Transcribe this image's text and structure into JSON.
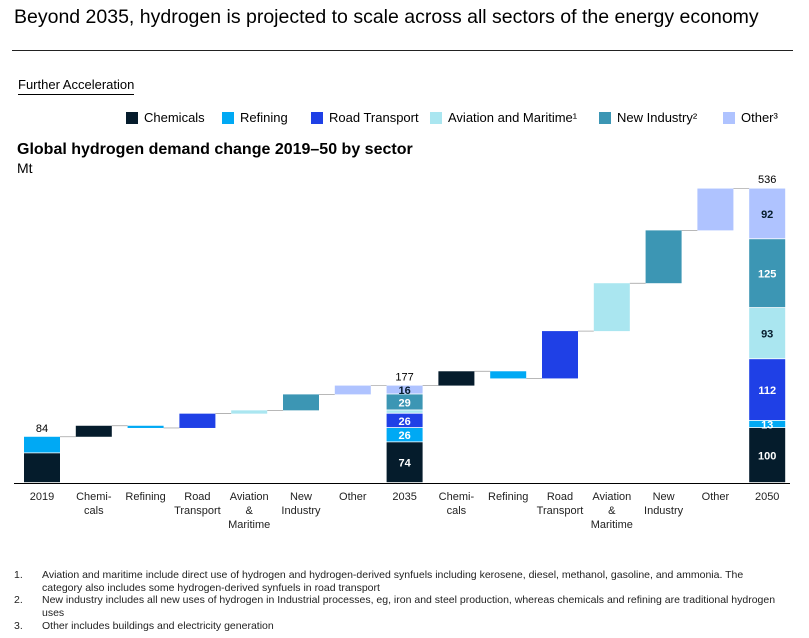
{
  "headline": "Beyond 2035, hydrogen is projected to scale across all sectors of the energy economy",
  "scenario_label": "Further Acceleration",
  "legend": [
    {
      "label": "Chemicals",
      "color": "#051c2c"
    },
    {
      "label": "Refining",
      "color": "#00a9f4"
    },
    {
      "label": "Road Transport",
      "color": "#1f40e6"
    },
    {
      "label": "Aviation and Maritime¹",
      "color": "#aae6f0"
    },
    {
      "label": "New Industry²",
      "color": "#3c96b4"
    },
    {
      "label": "Other³",
      "color": "#afc3ff"
    }
  ],
  "chart_data": {
    "type": "bar",
    "subtype": "waterfall",
    "title": "Global hydrogen demand change 2019–50 by sector",
    "ylabel": "Mt",
    "xlabel": "",
    "ylim": [
      0,
      536
    ],
    "grid": false,
    "legend_position": "top",
    "categories": [
      "2019",
      "Chemi-\ncals",
      "Refining",
      "Road\nTransport",
      "Aviation\n&\nMaritime",
      "New\nIndustry",
      "Other",
      "2035",
      "Chemi-\ncals",
      "Refining",
      "Road\nTransport",
      "Aviation\n&\nMaritime",
      "New\nIndustry",
      "Other",
      "2050"
    ],
    "sectors": [
      "Chemicals",
      "Refining",
      "Road Transport",
      "Aviation and Maritime",
      "New Industry",
      "Other"
    ],
    "totals": [
      {
        "category": "2019",
        "total": 84,
        "show_segment_labels": false,
        "segments": [
          {
            "sector": "Chemicals",
            "value": 54
          },
          {
            "sector": "Refining",
            "value": 30
          }
        ]
      },
      {
        "category": "2035",
        "total": 177,
        "show_segment_labels": true,
        "segments": [
          {
            "sector": "Chemicals",
            "value": 74
          },
          {
            "sector": "Refining",
            "value": 26
          },
          {
            "sector": "Road Transport",
            "value": 26
          },
          {
            "sector": "Aviation and Maritime",
            "value": 6
          },
          {
            "sector": "New Industry",
            "value": 29
          },
          {
            "sector": "Other",
            "value": 16
          }
        ]
      },
      {
        "category": "2050",
        "total": 536,
        "show_segment_labels": true,
        "segments": [
          {
            "sector": "Chemicals",
            "value": 100
          },
          {
            "sector": "Refining",
            "value": 13
          },
          {
            "sector": "Road Transport",
            "value": 112
          },
          {
            "sector": "Aviation and Maritime",
            "value": 93
          },
          {
            "sector": "New Industry",
            "value": 125
          },
          {
            "sector": "Other",
            "value": 92
          }
        ]
      }
    ],
    "changes": [
      {
        "category_index": 1,
        "sector": "Chemicals",
        "value": 20
      },
      {
        "category_index": 2,
        "sector": "Refining",
        "value": -4
      },
      {
        "category_index": 3,
        "sector": "Road Transport",
        "value": 26
      },
      {
        "category_index": 4,
        "sector": "Aviation and Maritime",
        "value": 6
      },
      {
        "category_index": 5,
        "sector": "New Industry",
        "value": 29
      },
      {
        "category_index": 6,
        "sector": "Other",
        "value": 16
      },
      {
        "category_index": 8,
        "sector": "Chemicals",
        "value": 26
      },
      {
        "category_index": 9,
        "sector": "Refining",
        "value": -13
      },
      {
        "category_index": 10,
        "sector": "Road Transport",
        "value": 86
      },
      {
        "category_index": 11,
        "sector": "Aviation and Maritime",
        "value": 87
      },
      {
        "category_index": 12,
        "sector": "New Industry",
        "value": 96
      },
      {
        "category_index": 13,
        "sector": "Other",
        "value": 76
      }
    ]
  },
  "footnotes": [
    {
      "num": "1.",
      "text": "Aviation and maritime include direct use of hydrogen and hydrogen-derived synfuels including kerosene, diesel, methanol, gasoline, and ammonia. The category also includes some hydrogen-derived synfuels in road transport"
    },
    {
      "num": "2.",
      "text": "New industry includes all new uses of hydrogen in Industrial processes, eg, iron and steel production, whereas chemicals and refining are traditional hydrogen uses"
    },
    {
      "num": "3.",
      "text": "Other includes buildings and electricity generation"
    }
  ]
}
